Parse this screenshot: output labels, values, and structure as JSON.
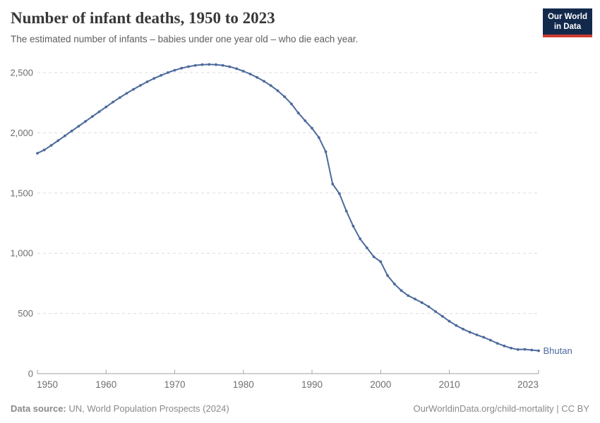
{
  "header": {
    "title": "Number of infant deaths, 1950 to 2023",
    "subtitle": "The estimated number of infants – babies under one year old – who die each year.",
    "logo": {
      "line1": "Our World",
      "line2": "in Data",
      "bg_color": "#12294b",
      "accent_color": "#cf3a30"
    }
  },
  "chart_data": {
    "type": "line",
    "title": "Number of infant deaths, 1950 to 2023",
    "xlabel": "",
    "ylabel": "",
    "xlim": [
      1950,
      2023
    ],
    "ylim": [
      0,
      2500
    ],
    "grid": "horizontal-dashed",
    "legend_position": "end-of-line-label",
    "x_ticks": [
      1950,
      1960,
      1970,
      1980,
      1990,
      2000,
      2010,
      2023
    ],
    "y_ticks": [
      0,
      500,
      1000,
      1500,
      2000,
      2500
    ],
    "y_tick_labels": [
      "0",
      "500",
      "1,000",
      "1,500",
      "2,000",
      "2,500"
    ],
    "series": [
      {
        "name": "Bhutan",
        "color": "#4c6a9c",
        "x": [
          1950,
          1951,
          1952,
          1953,
          1954,
          1955,
          1956,
          1957,
          1958,
          1959,
          1960,
          1961,
          1962,
          1963,
          1964,
          1965,
          1966,
          1967,
          1968,
          1969,
          1970,
          1971,
          1972,
          1973,
          1974,
          1975,
          1976,
          1977,
          1978,
          1979,
          1980,
          1981,
          1982,
          1983,
          1984,
          1985,
          1986,
          1987,
          1988,
          1989,
          1990,
          1991,
          1992,
          1993,
          1994,
          1995,
          1996,
          1997,
          1998,
          1999,
          2000,
          2001,
          2002,
          2003,
          2004,
          2005,
          2006,
          2007,
          2008,
          2009,
          2010,
          2011,
          2012,
          2013,
          2014,
          2015,
          2016,
          2017,
          2018,
          2019,
          2020,
          2021,
          2022,
          2023
        ],
        "values": [
          1830,
          1858,
          1895,
          1935,
          1975,
          2015,
          2055,
          2095,
          2135,
          2175,
          2215,
          2255,
          2292,
          2328,
          2362,
          2394,
          2424,
          2452,
          2477,
          2500,
          2520,
          2537,
          2550,
          2560,
          2566,
          2568,
          2566,
          2560,
          2549,
          2533,
          2512,
          2488,
          2460,
          2428,
          2392,
          2350,
          2300,
          2240,
          2165,
          2100,
          2038,
          1960,
          1843,
          1575,
          1495,
          1350,
          1225,
          1120,
          1045,
          970,
          930,
          815,
          745,
          690,
          648,
          620,
          590,
          556,
          515,
          476,
          435,
          400,
          370,
          344,
          322,
          302,
          278,
          252,
          230,
          212,
          200,
          202,
          196,
          190
        ]
      }
    ]
  },
  "footer": {
    "datasource_label": "Data source:",
    "datasource_value": " UN, World Population Prospects (2024)",
    "link": "OurWorldinData.org/child-mortality | CC BY"
  }
}
